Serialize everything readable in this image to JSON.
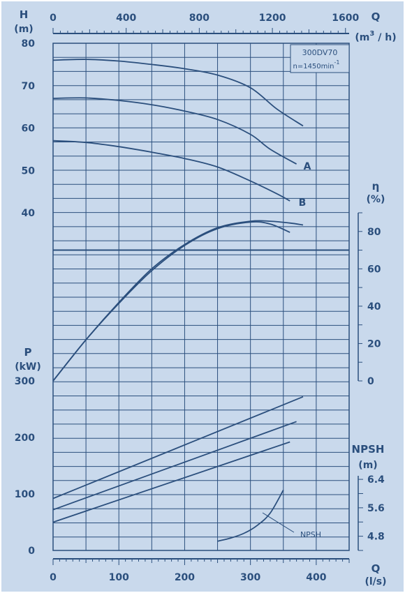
{
  "chart_data": {
    "type": "line",
    "model_label": "300DV70",
    "speed_label": "n=1450min",
    "speed_exp": "-1",
    "top_axis": {
      "label": "Q",
      "unit_parts": [
        "(m",
        "3",
        " / h)"
      ],
      "ticks": [
        "0",
        "400",
        "800",
        "1200",
        "1600"
      ]
    },
    "bottom_axis": {
      "label": "Q",
      "unit": "(l/s)",
      "range": [
        0,
        450
      ],
      "ticks": [
        "0",
        "100",
        "200",
        "300",
        "400"
      ]
    },
    "head_axis": {
      "label": "H",
      "unit": "(m)",
      "range": [
        40,
        80
      ],
      "ticks": [
        "80",
        "70",
        "60",
        "50",
        "40"
      ]
    },
    "eff_axis": {
      "label": "η",
      "unit": "(%)",
      "range": [
        0,
        90
      ],
      "ticks": [
        "80",
        "60",
        "40",
        "20",
        "0"
      ]
    },
    "power_axis": {
      "label": "P",
      "unit": "(kW)",
      "range": [
        0,
        300
      ],
      "ticks": [
        "300",
        "200",
        "100",
        "0"
      ]
    },
    "npsh_axis": {
      "label": "NPSH",
      "unit": "(m)",
      "range": [
        4.4,
        6.5
      ],
      "ticks": [
        "6.4",
        "5.6",
        "4.8"
      ]
    },
    "head_curves": [
      {
        "name": "",
        "points": [
          [
            0,
            76
          ],
          [
            50,
            76.2
          ],
          [
            100,
            75.8
          ],
          [
            150,
            75
          ],
          [
            200,
            74
          ],
          [
            250,
            72.5
          ],
          [
            300,
            69.5
          ],
          [
            340,
            64.5
          ],
          [
            380,
            60.5
          ]
        ]
      },
      {
        "name": "A",
        "points": [
          [
            0,
            67
          ],
          [
            50,
            67.1
          ],
          [
            100,
            66.5
          ],
          [
            150,
            65.5
          ],
          [
            200,
            64
          ],
          [
            250,
            62
          ],
          [
            300,
            58.5
          ],
          [
            330,
            55
          ],
          [
            370,
            51.5
          ]
        ]
      },
      {
        "name": "B",
        "points": [
          [
            0,
            57
          ],
          [
            50,
            56.6
          ],
          [
            100,
            55.6
          ],
          [
            150,
            54.3
          ],
          [
            200,
            52.8
          ],
          [
            250,
            50.8
          ],
          [
            300,
            47.5
          ],
          [
            340,
            44.5
          ],
          [
            360,
            42.8
          ]
        ]
      }
    ],
    "efficiency_curves": [
      {
        "name": "",
        "points": [
          [
            0,
            0
          ],
          [
            50,
            22
          ],
          [
            100,
            42
          ],
          [
            150,
            60
          ],
          [
            200,
            73
          ],
          [
            250,
            82
          ],
          [
            300,
            85.5
          ],
          [
            330,
            85.5
          ],
          [
            360,
            84.5
          ],
          [
            380,
            83.5
          ]
        ]
      },
      {
        "name": "",
        "points": [
          [
            0,
            0
          ],
          [
            50,
            22
          ],
          [
            100,
            41.5
          ],
          [
            150,
            59
          ],
          [
            200,
            72.5
          ],
          [
            250,
            81.5
          ],
          [
            300,
            85
          ],
          [
            330,
            84
          ],
          [
            360,
            79.5
          ]
        ]
      }
    ],
    "power_curves": [
      {
        "name": "",
        "points": [
          [
            0,
            92
          ],
          [
            380,
            272
          ]
        ]
      },
      {
        "name": "",
        "points": [
          [
            0,
            72
          ],
          [
            370,
            228
          ]
        ]
      },
      {
        "name": "",
        "points": [
          [
            0,
            50
          ],
          [
            360,
            192
          ]
        ]
      }
    ],
    "npsh_curve": {
      "name": "NPSH",
      "points": [
        [
          250,
          4.66
        ],
        [
          270,
          4.75
        ],
        [
          290,
          4.88
        ],
        [
          310,
          5.1
        ],
        [
          330,
          5.45
        ],
        [
          350,
          6.1
        ]
      ]
    },
    "npsh_label": "NPSH",
    "curve_labels": [
      "A",
      "B"
    ],
    "grid": true
  }
}
